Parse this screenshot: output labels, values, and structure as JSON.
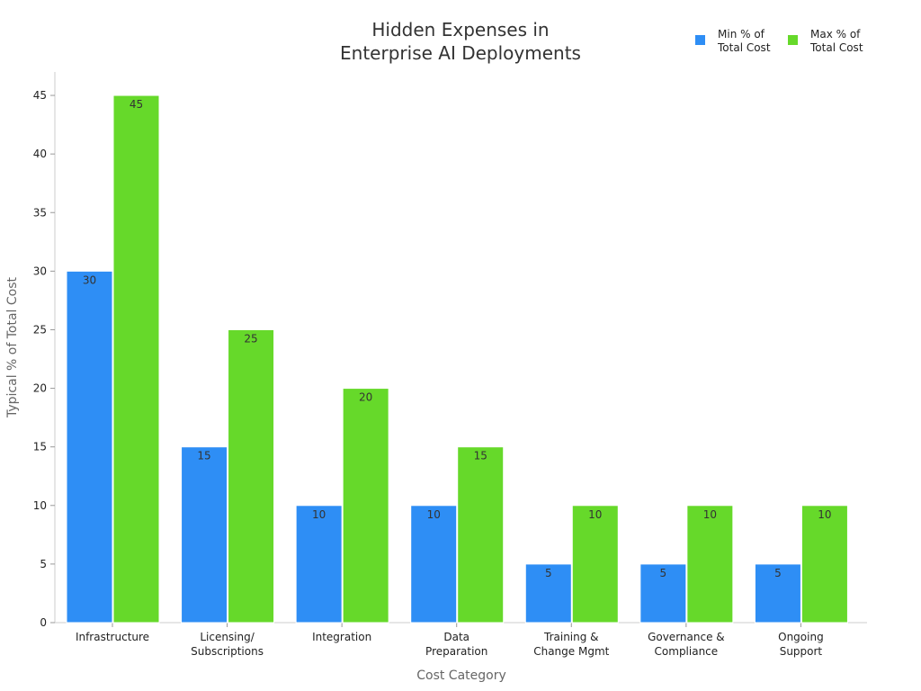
{
  "chart_data": {
    "type": "bar",
    "title": [
      "Hidden Expenses in",
      "Enterprise AI Deployments"
    ],
    "categories": [
      [
        "Infrastructure"
      ],
      [
        "Licensing/",
        "Subscriptions"
      ],
      [
        "Integration"
      ],
      [
        "Data",
        "Preparation"
      ],
      [
        "Training &",
        "Change Mgmt"
      ],
      [
        "Governance &",
        "Compliance"
      ],
      [
        "Ongoing",
        "Support"
      ]
    ],
    "series": [
      {
        "name": [
          "Min % of",
          "Total Cost"
        ],
        "color": "#2e8ef5",
        "values": [
          30,
          15,
          10,
          10,
          5,
          5,
          5
        ]
      },
      {
        "name": [
          "Max % of",
          "Total Cost"
        ],
        "color": "#66d92a",
        "values": [
          45,
          25,
          20,
          15,
          10,
          10,
          10
        ]
      }
    ],
    "xlabel": "Cost Category",
    "ylabel": "Typical % of Total Cost",
    "ylim": [
      0,
      47
    ],
    "yticks": [
      0,
      5,
      10,
      15,
      20,
      25,
      30,
      35,
      40,
      45
    ],
    "grid": false,
    "legend": "top-right"
  }
}
